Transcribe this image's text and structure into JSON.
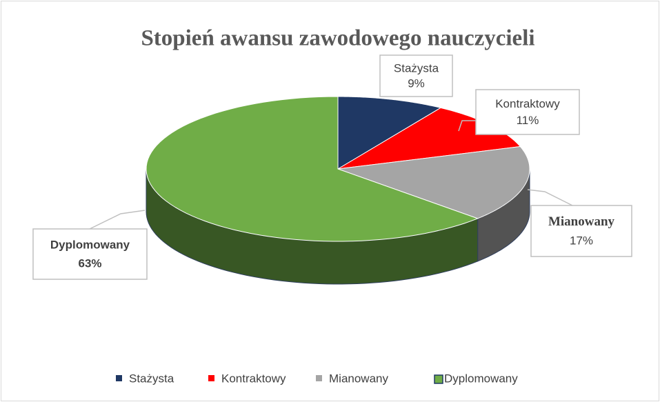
{
  "chart_data": {
    "type": "pie3d",
    "title": "Stopień awansu zawodowego nauczycieli",
    "categories": [
      "Stażysta",
      "Kontraktowy",
      "Mianowany",
      "Dyplomowany"
    ],
    "values": [
      9,
      11,
      17,
      63
    ],
    "value_labels": [
      "9%",
      "11%",
      "17%",
      "63%"
    ],
    "colors": [
      "#1f3864",
      "#ff0000",
      "#a5a5a5",
      "#70ad47"
    ],
    "legend": "bottom"
  }
}
